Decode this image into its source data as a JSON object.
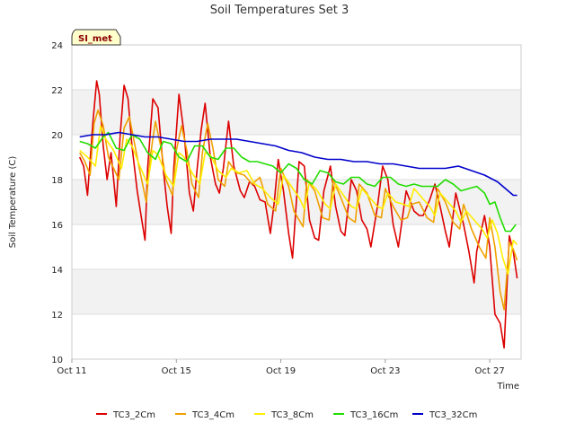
{
  "chart_data": {
    "type": "line",
    "title": "Soil Temperatures Set 3",
    "xlabel": "Time",
    "ylabel": "Soil Temperature (C)",
    "badge": "SI_met",
    "xlim": [
      0,
      17.2
    ],
    "ylim": [
      10,
      24
    ],
    "x_ticks": [
      {
        "label": "Oct 11",
        "value": 0
      },
      {
        "label": "Oct 15",
        "value": 4
      },
      {
        "label": "Oct 19",
        "value": 8
      },
      {
        "label": "Oct 23",
        "value": 12
      },
      {
        "label": "Oct 27",
        "value": 16
      }
    ],
    "y_ticks": [
      10,
      12,
      14,
      16,
      18,
      20,
      22,
      24
    ],
    "legend_position": "bottom",
    "series": [
      {
        "name": "TC3_2Cm",
        "color": "#dd0000",
        "x": [
          0.3,
          0.45,
          0.6,
          0.8,
          0.95,
          1.05,
          1.2,
          1.35,
          1.5,
          1.7,
          1.85,
          2.0,
          2.15,
          2.3,
          2.5,
          2.65,
          2.8,
          2.9,
          3.1,
          3.3,
          3.5,
          3.65,
          3.8,
          3.9,
          4.1,
          4.3,
          4.5,
          4.65,
          4.8,
          4.95,
          5.1,
          5.3,
          5.5,
          5.65,
          5.8,
          6.0,
          6.2,
          6.45,
          6.6,
          6.8,
          7.0,
          7.2,
          7.4,
          7.6,
          7.75,
          7.9,
          8.1,
          8.3,
          8.45,
          8.7,
          8.9,
          9.1,
          9.3,
          9.45,
          9.65,
          9.9,
          10.1,
          10.3,
          10.45,
          10.7,
          10.9,
          11.1,
          11.3,
          11.45,
          11.7,
          11.9,
          12.1,
          12.3,
          12.5,
          12.8,
          13.1,
          13.3,
          13.45,
          13.7,
          13.9,
          14.1,
          14.3,
          14.45,
          14.7,
          15.0,
          15.2,
          15.4,
          15.5,
          15.8,
          16.0,
          16.2,
          16.4,
          16.55,
          16.75,
          16.9,
          17.05
        ],
        "values": [
          19.0,
          18.6,
          17.3,
          20.5,
          22.4,
          21.8,
          19.5,
          18.0,
          19.2,
          16.8,
          20.0,
          22.2,
          21.6,
          19.5,
          17.5,
          16.4,
          15.3,
          18.5,
          21.6,
          21.2,
          18.5,
          16.8,
          15.6,
          18.5,
          21.8,
          20.0,
          17.4,
          16.6,
          18.5,
          20.2,
          21.4,
          19.0,
          17.8,
          17.4,
          18.5,
          20.6,
          18.6,
          17.5,
          17.2,
          17.9,
          17.7,
          17.1,
          17.0,
          15.6,
          17.0,
          18.9,
          17.5,
          15.6,
          14.5,
          18.8,
          18.6,
          16.2,
          15.4,
          15.3,
          17.5,
          18.6,
          16.8,
          15.7,
          15.5,
          18.0,
          17.5,
          16.2,
          15.8,
          15.0,
          16.8,
          18.6,
          18.0,
          16.0,
          15.0,
          17.5,
          16.6,
          16.4,
          16.4,
          17.1,
          17.8,
          16.8,
          15.7,
          15.0,
          17.4,
          16.0,
          14.8,
          13.4,
          14.8,
          16.4,
          15.0,
          12.0,
          11.6,
          10.5,
          15.5,
          14.8,
          13.6
        ]
      },
      {
        "name": "TC3_4Cm",
        "color": "#f0a000",
        "x": [
          0.3,
          0.5,
          0.7,
          0.85,
          1.0,
          1.2,
          1.4,
          1.6,
          1.8,
          2.0,
          2.2,
          2.4,
          2.6,
          2.85,
          3.0,
          3.2,
          3.4,
          3.6,
          3.85,
          4.0,
          4.2,
          4.4,
          4.6,
          4.85,
          5.0,
          5.2,
          5.4,
          5.6,
          5.85,
          6.0,
          6.3,
          6.6,
          6.9,
          7.2,
          7.5,
          7.8,
          8.0,
          8.3,
          8.5,
          8.85,
          9.0,
          9.3,
          9.6,
          9.85,
          10.0,
          10.3,
          10.6,
          10.85,
          11.0,
          11.3,
          11.6,
          11.85,
          12.0,
          12.3,
          12.6,
          12.85,
          13.0,
          13.3,
          13.6,
          13.85,
          14.0,
          14.3,
          14.6,
          14.85,
          15.0,
          15.3,
          15.6,
          15.85,
          16.0,
          16.2,
          16.4,
          16.55,
          16.75,
          16.9,
          17.05
        ],
        "values": [
          19.2,
          18.8,
          18.2,
          20.5,
          21.1,
          20.4,
          19.0,
          18.5,
          18.0,
          20.3,
          20.8,
          19.6,
          18.4,
          17.0,
          19.0,
          20.6,
          19.5,
          18.0,
          17.3,
          19.3,
          20.4,
          19.3,
          17.8,
          17.2,
          19.2,
          20.5,
          19.4,
          18.0,
          17.7,
          18.8,
          18.3,
          18.2,
          17.8,
          18.1,
          16.9,
          16.6,
          18.5,
          17.7,
          16.6,
          15.9,
          18.0,
          17.5,
          16.3,
          16.2,
          18.0,
          17.2,
          16.3,
          16.1,
          17.8,
          17.4,
          16.4,
          16.3,
          17.6,
          16.8,
          16.2,
          16.3,
          16.9,
          17.0,
          16.3,
          16.1,
          17.6,
          17.0,
          16.1,
          15.8,
          16.9,
          15.8,
          15.0,
          14.5,
          16.3,
          15.0,
          13.0,
          12.2,
          15.2,
          14.9,
          14.4
        ]
      },
      {
        "name": "TC3_8Cm",
        "color": "#ffee00",
        "x": [
          0.3,
          0.6,
          0.9,
          1.1,
          1.3,
          1.6,
          1.9,
          2.1,
          2.3,
          2.6,
          2.9,
          3.1,
          3.3,
          3.6,
          3.9,
          4.1,
          4.3,
          4.6,
          4.9,
          5.1,
          5.3,
          5.6,
          5.9,
          6.1,
          6.4,
          6.7,
          7.0,
          7.3,
          7.6,
          7.9,
          8.1,
          8.4,
          8.7,
          8.9,
          9.1,
          9.4,
          9.7,
          9.9,
          10.1,
          10.4,
          10.7,
          10.9,
          11.1,
          11.4,
          11.7,
          11.9,
          12.1,
          12.4,
          12.7,
          12.9,
          13.1,
          13.4,
          13.7,
          13.9,
          14.1,
          14.4,
          14.7,
          14.9,
          15.1,
          15.4,
          15.7,
          15.9,
          16.1,
          16.3,
          16.5,
          16.7,
          16.9,
          17.05
        ],
        "values": [
          19.3,
          19.0,
          18.6,
          20.4,
          19.8,
          19.3,
          18.5,
          19.8,
          19.5,
          18.6,
          17.8,
          19.3,
          19.1,
          18.2,
          17.7,
          19.2,
          19.0,
          18.3,
          17.8,
          19.2,
          19.1,
          18.4,
          18.1,
          18.5,
          18.3,
          18.4,
          17.8,
          17.6,
          17.2,
          16.9,
          18.2,
          17.7,
          17.2,
          16.7,
          17.9,
          17.5,
          16.9,
          16.7,
          17.8,
          17.3,
          16.8,
          16.7,
          17.6,
          17.2,
          16.8,
          16.7,
          17.4,
          17.0,
          16.9,
          16.8,
          17.6,
          17.2,
          16.8,
          16.4,
          17.4,
          17.0,
          16.6,
          16.1,
          16.6,
          16.2,
          15.8,
          15.4,
          16.2,
          15.6,
          14.5,
          13.8,
          15.3,
          15.1
        ]
      },
      {
        "name": "TC3_16Cm",
        "color": "#22dd00",
        "x": [
          0.3,
          0.6,
          0.9,
          1.2,
          1.4,
          1.7,
          2.0,
          2.3,
          2.6,
          2.9,
          3.2,
          3.5,
          3.8,
          4.1,
          4.4,
          4.7,
          5.0,
          5.3,
          5.6,
          5.9,
          6.2,
          6.5,
          6.8,
          7.1,
          7.4,
          7.7,
          8.0,
          8.3,
          8.6,
          8.9,
          9.2,
          9.5,
          9.8,
          10.1,
          10.4,
          10.7,
          11.0,
          11.3,
          11.6,
          11.9,
          12.2,
          12.5,
          12.8,
          13.1,
          13.4,
          13.7,
          14.0,
          14.3,
          14.6,
          14.9,
          15.2,
          15.5,
          15.8,
          16.0,
          16.2,
          16.4,
          16.6,
          16.8,
          17.0
        ],
        "values": [
          19.7,
          19.6,
          19.4,
          19.9,
          20.1,
          19.4,
          19.3,
          20.0,
          19.8,
          19.2,
          18.9,
          19.7,
          19.6,
          19.0,
          18.8,
          19.5,
          19.5,
          19.0,
          18.9,
          19.4,
          19.4,
          19.0,
          18.8,
          18.8,
          18.7,
          18.6,
          18.3,
          18.7,
          18.5,
          18.0,
          17.8,
          18.4,
          18.3,
          17.9,
          17.8,
          18.1,
          18.1,
          17.8,
          17.7,
          18.1,
          18.1,
          17.8,
          17.7,
          17.8,
          17.7,
          17.7,
          17.7,
          18.0,
          17.8,
          17.5,
          17.6,
          17.7,
          17.4,
          16.9,
          17.0,
          16.3,
          15.7,
          15.7,
          16.0
        ]
      },
      {
        "name": "TC3_32Cm",
        "color": "#0000cc",
        "x": [
          0.3,
          0.8,
          1.3,
          1.8,
          2.3,
          2.8,
          3.3,
          3.8,
          4.3,
          4.8,
          5.3,
          5.8,
          6.3,
          6.8,
          7.3,
          7.8,
          8.3,
          8.8,
          9.3,
          9.8,
          10.3,
          10.8,
          11.3,
          11.8,
          12.3,
          12.8,
          13.3,
          13.8,
          14.3,
          14.8,
          15.3,
          15.8,
          16.3,
          16.7,
          16.9,
          17.05
        ],
        "values": [
          19.9,
          20.0,
          20.0,
          20.1,
          20.0,
          19.9,
          19.9,
          19.8,
          19.7,
          19.7,
          19.8,
          19.8,
          19.8,
          19.7,
          19.6,
          19.5,
          19.3,
          19.2,
          19.0,
          18.9,
          18.9,
          18.8,
          18.8,
          18.7,
          18.7,
          18.6,
          18.5,
          18.5,
          18.5,
          18.6,
          18.4,
          18.2,
          17.9,
          17.5,
          17.3,
          17.3
        ]
      }
    ]
  }
}
